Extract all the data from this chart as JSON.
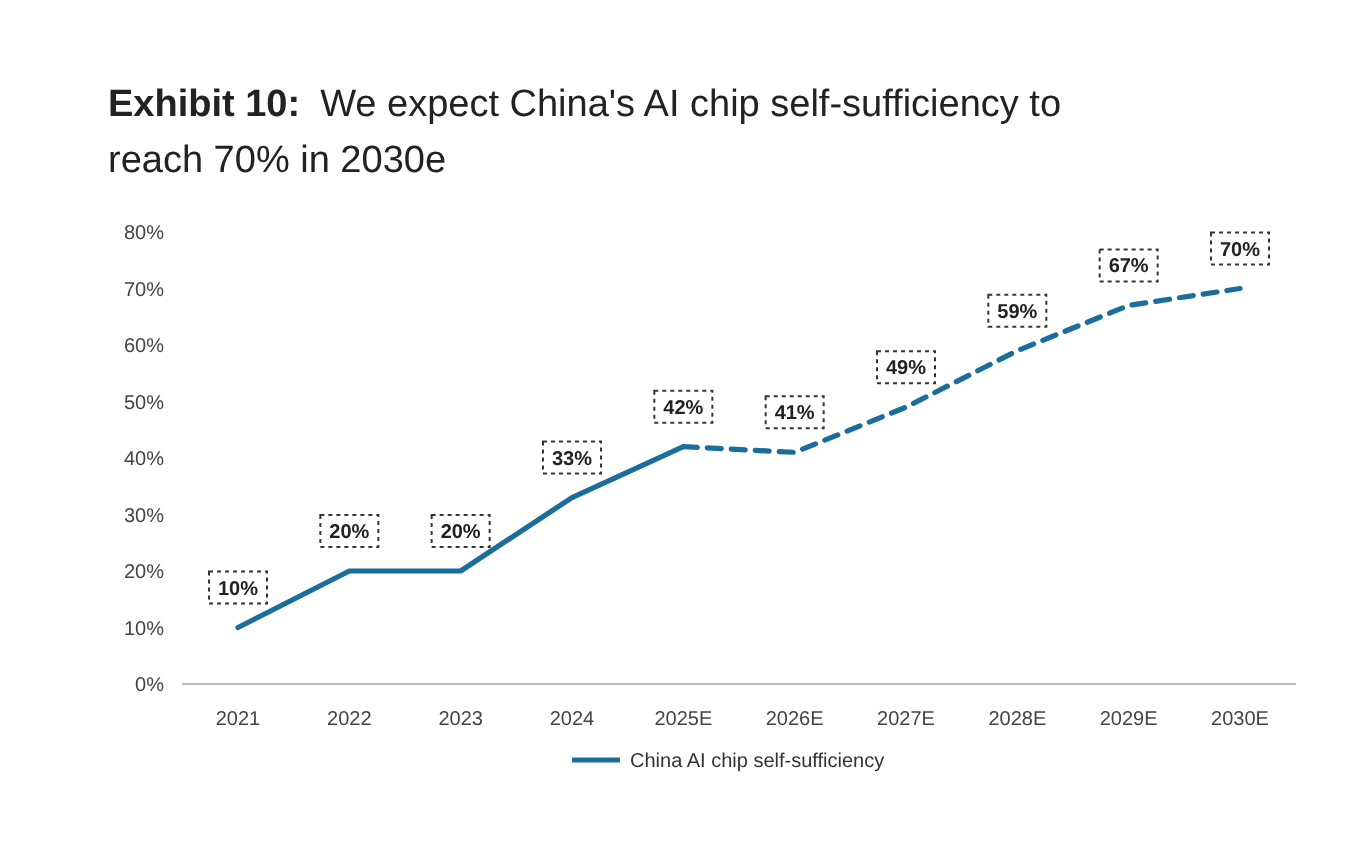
{
  "chart_data": {
    "type": "line",
    "title": "Exhibit 10:",
    "subtitle": "We expect China's AI chip self-sufficiency to reach 70% in 2030e",
    "categories": [
      "2021",
      "2022",
      "2023",
      "2024",
      "2025E",
      "2026E",
      "2027E",
      "2028E",
      "2029E",
      "2030E"
    ],
    "series": [
      {
        "name": "China AI chip self-sufficiency",
        "color": "#1b6d9b",
        "line_style": "solid",
        "values": [
          10,
          20,
          20,
          33,
          42,
          null,
          null,
          null,
          null,
          null
        ]
      },
      {
        "color": "#1b6d9b",
        "line_style": "dashed",
        "values": [
          null,
          null,
          null,
          null,
          42,
          41,
          49,
          59,
          67,
          70
        ],
        "value_labels": [
          null,
          null,
          null,
          null,
          null,
          "41%",
          "49%",
          "59%",
          "67%",
          "70%"
        ]
      }
    ],
    "value_labels": [
      "10%",
      "20%",
      "20%",
      "33%",
      "42%",
      null,
      null,
      null,
      null,
      null
    ],
    "ylim": [
      0,
      80
    ],
    "yticks": [
      {
        "value": 0,
        "label": "0%"
      },
      {
        "value": 10,
        "label": "10%"
      },
      {
        "value": 20,
        "label": "20%"
      },
      {
        "value": 30,
        "label": "30%"
      },
      {
        "value": 40,
        "label": "40%"
      },
      {
        "value": 50,
        "label": "50%"
      },
      {
        "value": 60,
        "label": "60%"
      },
      {
        "value": 70,
        "label": "70%"
      },
      {
        "value": 80,
        "label": "80%"
      }
    ],
    "grid": false,
    "legend": "bottom",
    "marker": "none"
  }
}
